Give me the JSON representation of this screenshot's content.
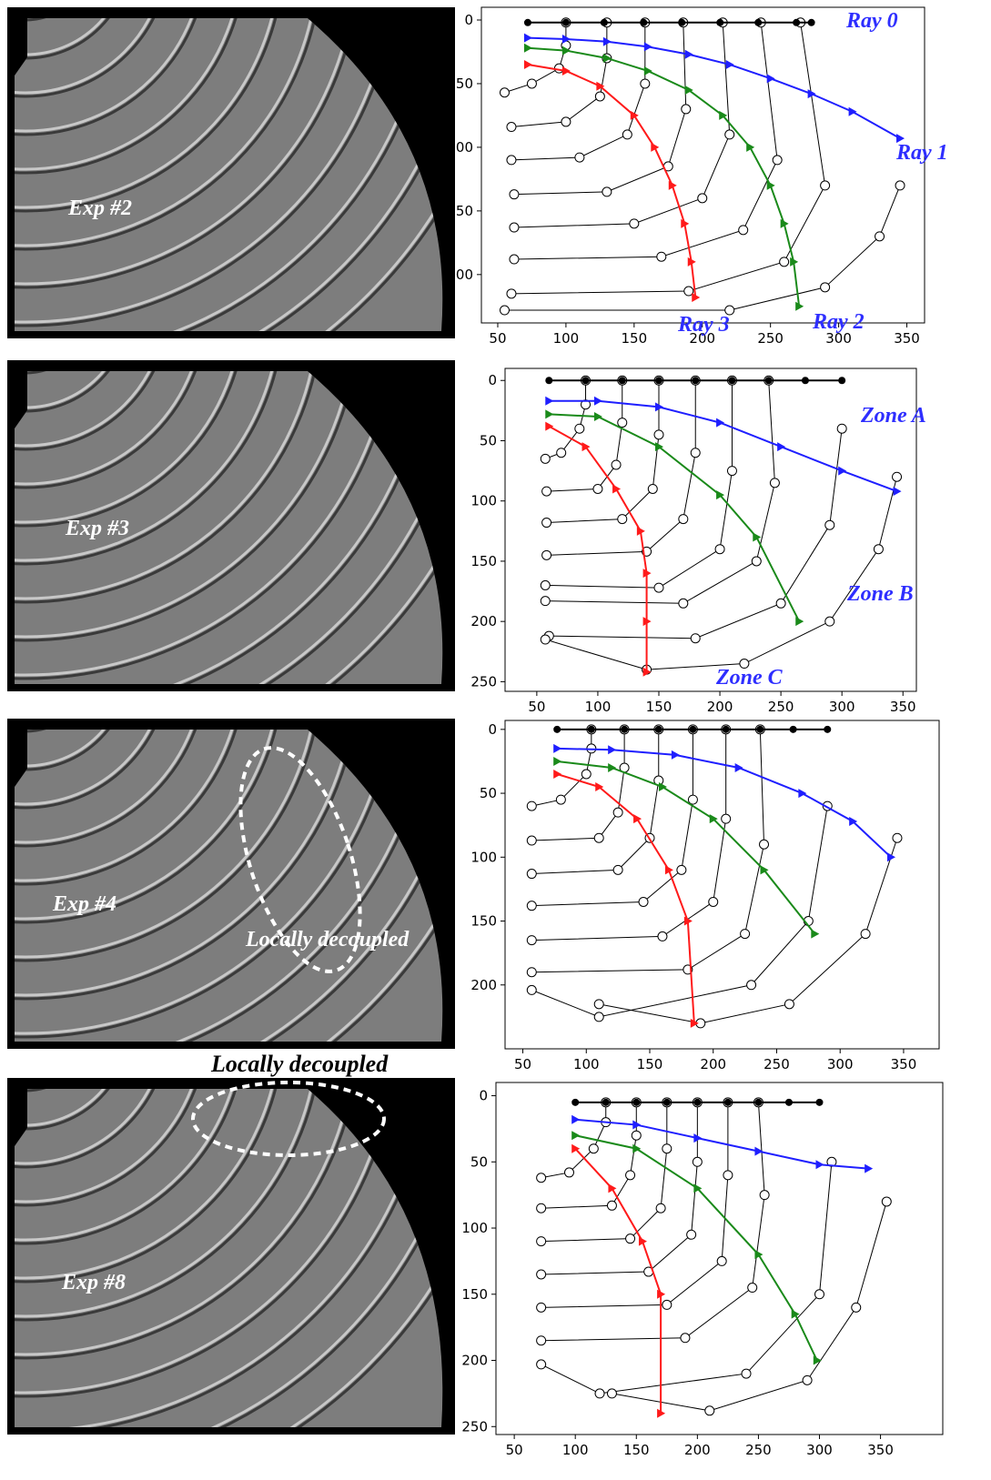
{
  "heading": "Locally decoupled",
  "images": [
    {
      "label": "Exp #2"
    },
    {
      "label": "Exp #3"
    },
    {
      "label": "Exp #4",
      "annotation": "Locally decoupled"
    },
    {
      "label": "Exp #8"
    }
  ],
  "chart_data": [
    {
      "type": "scatter",
      "xlim": [
        38,
        363
      ],
      "ylim": [
        -10,
        238
      ],
      "xticks": [
        50,
        100,
        150,
        200,
        250,
        300,
        350
      ],
      "yticks": [
        0,
        50,
        100,
        150,
        200
      ],
      "y_inverted": true,
      "annotations": [
        "Ray 0",
        "Ray 1",
        "Ray 2",
        "Ray 3"
      ],
      "annotation_color": "#2e2eff",
      "series": [
        {
          "color": "#000000",
          "marker": "circle",
          "x": [
            55,
            75,
            95,
            100,
            100
          ],
          "values": [
            57,
            50,
            38,
            20,
            2
          ]
        },
        {
          "color": "#000000",
          "marker": "circle",
          "x": [
            60,
            100,
            125,
            130,
            130
          ],
          "values": [
            84,
            80,
            60,
            30,
            2
          ]
        },
        {
          "color": "#000000",
          "marker": "circle",
          "x": [
            60,
            110,
            145,
            158,
            158
          ],
          "values": [
            110,
            108,
            90,
            50,
            2
          ]
        },
        {
          "color": "#000000",
          "marker": "circle",
          "x": [
            62,
            130,
            175,
            188,
            186
          ],
          "values": [
            137,
            135,
            115,
            70,
            2
          ]
        },
        {
          "color": "#000000",
          "marker": "circle",
          "x": [
            62,
            150,
            200,
            220,
            215
          ],
          "values": [
            163,
            160,
            140,
            90,
            2
          ]
        },
        {
          "color": "#000000",
          "marker": "circle",
          "x": [
            62,
            170,
            230,
            255,
            243
          ],
          "values": [
            188,
            186,
            165,
            110,
            2
          ]
        },
        {
          "color": "#000000",
          "marker": "circle",
          "x": [
            60,
            190,
            260,
            290,
            272
          ],
          "values": [
            215,
            213,
            190,
            130,
            2
          ]
        },
        {
          "color": "#000000",
          "marker": "circle",
          "x": [
            55,
            220,
            290,
            330,
            345
          ],
          "values": [
            228,
            228,
            210,
            170,
            130
          ]
        },
        {
          "color": "#000000",
          "marker": "dot",
          "x": [
            72,
            100,
            128,
            157,
            185,
            213,
            241,
            269,
            280
          ],
          "values": [
            2,
            2,
            2,
            2,
            2,
            2,
            2,
            2,
            2
          ]
        },
        {
          "color": "#1f1fff",
          "marker": "triangle",
          "x": [
            72,
            100,
            130,
            160,
            190,
            220,
            250,
            280,
            310,
            345
          ],
          "values": [
            14,
            15,
            17,
            21,
            27,
            35,
            46,
            58,
            72,
            93
          ]
        },
        {
          "color": "#1a8a1a",
          "marker": "triangle",
          "x": [
            72,
            100,
            130,
            160,
            190,
            215,
            235,
            250,
            260,
            267,
            271
          ],
          "values": [
            22,
            24,
            30,
            40,
            55,
            75,
            100,
            130,
            160,
            190,
            225
          ]
        },
        {
          "color": "#ff1a1a",
          "marker": "triangle",
          "x": [
            72,
            100,
            125,
            150,
            165,
            178,
            187,
            192,
            195
          ],
          "values": [
            35,
            40,
            52,
            75,
            100,
            130,
            160,
            190,
            218
          ]
        }
      ]
    },
    {
      "type": "scatter",
      "xlim": [
        24,
        361
      ],
      "ylim": [
        -10,
        258
      ],
      "xticks": [
        50,
        100,
        150,
        200,
        250,
        300,
        350
      ],
      "yticks": [
        0,
        50,
        100,
        150,
        200,
        250
      ],
      "y_inverted": true,
      "annotations": [
        "Zone A",
        "Zone B",
        "Zone C"
      ],
      "annotation_color": "#2e2eff",
      "series": [
        {
          "color": "#000000",
          "marker": "circle",
          "x": [
            57,
            70,
            85,
            90,
            90
          ],
          "values": [
            65,
            60,
            40,
            20,
            0
          ]
        },
        {
          "color": "#000000",
          "marker": "circle",
          "x": [
            58,
            100,
            115,
            120,
            120
          ],
          "values": [
            92,
            90,
            70,
            35,
            0
          ]
        },
        {
          "color": "#000000",
          "marker": "circle",
          "x": [
            58,
            120,
            145,
            150,
            150
          ],
          "values": [
            118,
            115,
            90,
            45,
            0
          ]
        },
        {
          "color": "#000000",
          "marker": "circle",
          "x": [
            58,
            140,
            170,
            180,
            180
          ],
          "values": [
            145,
            142,
            115,
            60,
            0
          ]
        },
        {
          "color": "#000000",
          "marker": "circle",
          "x": [
            57,
            150,
            200,
            210,
            210
          ],
          "values": [
            170,
            172,
            140,
            75,
            0
          ]
        },
        {
          "color": "#000000",
          "marker": "circle",
          "x": [
            57,
            170,
            230,
            245,
            240
          ],
          "values": [
            183,
            185,
            150,
            85,
            0
          ]
        },
        {
          "color": "#000000",
          "marker": "circle",
          "x": [
            60,
            180,
            250,
            290,
            300
          ],
          "values": [
            212,
            214,
            185,
            120,
            40
          ]
        },
        {
          "color": "#000000",
          "marker": "circle",
          "x": [
            57,
            140,
            220,
            290,
            330,
            345
          ],
          "values": [
            215,
            240,
            235,
            200,
            140,
            80
          ]
        },
        {
          "color": "#000000",
          "marker": "dot",
          "x": [
            60,
            90,
            120,
            150,
            180,
            210,
            240,
            270,
            300
          ],
          "values": [
            0,
            0,
            0,
            0,
            0,
            0,
            0,
            0,
            0
          ]
        },
        {
          "color": "#1f1fff",
          "marker": "triangle",
          "x": [
            60,
            100,
            150,
            200,
            250,
            300,
            345
          ],
          "values": [
            17,
            17,
            22,
            35,
            55,
            75,
            92
          ]
        },
        {
          "color": "#1a8a1a",
          "marker": "triangle",
          "x": [
            60,
            100,
            150,
            200,
            230,
            265
          ],
          "values": [
            28,
            30,
            55,
            95,
            130,
            200
          ]
        },
        {
          "color": "#ff1a1a",
          "marker": "triangle",
          "x": [
            60,
            90,
            115,
            135,
            140,
            140,
            140
          ],
          "values": [
            38,
            55,
            90,
            125,
            160,
            200,
            242
          ]
        }
      ]
    },
    {
      "type": "scatter",
      "xlim": [
        36,
        378
      ],
      "ylim": [
        -7,
        250
      ],
      "xticks": [
        50,
        100,
        150,
        200,
        250,
        300,
        350
      ],
      "yticks": [
        0,
        50,
        100,
        150,
        200
      ],
      "y_inverted": true,
      "series": [
        {
          "color": "#000000",
          "marker": "circle",
          "x": [
            57,
            80,
            100,
            104,
            104
          ],
          "values": [
            60,
            55,
            35,
            15,
            0
          ]
        },
        {
          "color": "#000000",
          "marker": "circle",
          "x": [
            57,
            110,
            125,
            130,
            130
          ],
          "values": [
            87,
            85,
            65,
            30,
            0
          ]
        },
        {
          "color": "#000000",
          "marker": "circle",
          "x": [
            57,
            125,
            150,
            157,
            157
          ],
          "values": [
            113,
            110,
            85,
            40,
            0
          ]
        },
        {
          "color": "#000000",
          "marker": "circle",
          "x": [
            57,
            145,
            175,
            184,
            184
          ],
          "values": [
            138,
            135,
            110,
            55,
            0
          ]
        },
        {
          "color": "#000000",
          "marker": "circle",
          "x": [
            57,
            160,
            200,
            210,
            210
          ],
          "values": [
            165,
            162,
            135,
            70,
            0
          ]
        },
        {
          "color": "#000000",
          "marker": "circle",
          "x": [
            57,
            180,
            225,
            240,
            237
          ],
          "values": [
            190,
            188,
            160,
            90,
            0
          ]
        },
        {
          "color": "#000000",
          "marker": "circle",
          "x": [
            57,
            110,
            230,
            275,
            290
          ],
          "values": [
            204,
            225,
            200,
            150,
            60
          ]
        },
        {
          "color": "#000000",
          "marker": "circle",
          "x": [
            110,
            190,
            260,
            320,
            345
          ],
          "values": [
            215,
            230,
            215,
            160,
            85
          ]
        },
        {
          "color": "#000000",
          "marker": "dot",
          "x": [
            77,
            104,
            130,
            157,
            184,
            210,
            237,
            263,
            290
          ],
          "values": [
            0,
            0,
            0,
            0,
            0,
            0,
            0,
            0,
            0
          ]
        },
        {
          "color": "#1f1fff",
          "marker": "triangle",
          "x": [
            77,
            120,
            170,
            220,
            270,
            310,
            340
          ],
          "values": [
            15,
            16,
            20,
            30,
            50,
            72,
            100
          ]
        },
        {
          "color": "#1a8a1a",
          "marker": "triangle",
          "x": [
            77,
            120,
            160,
            200,
            240,
            280
          ],
          "values": [
            25,
            30,
            45,
            70,
            110,
            160
          ]
        },
        {
          "color": "#ff1a1a",
          "marker": "triangle",
          "x": [
            77,
            110,
            140,
            165,
            180,
            185
          ],
          "values": [
            35,
            45,
            70,
            110,
            150,
            230
          ]
        }
      ]
    },
    {
      "type": "scatter",
      "xlim": [
        35,
        401
      ],
      "ylim": [
        -10,
        256
      ],
      "xticks": [
        50,
        100,
        150,
        200,
        250,
        300,
        350
      ],
      "yticks": [
        0,
        50,
        100,
        150,
        200,
        250
      ],
      "y_inverted": true,
      "series": [
        {
          "color": "#000000",
          "marker": "circle",
          "x": [
            72,
            95,
            115,
            125,
            125
          ],
          "values": [
            62,
            58,
            40,
            20,
            5
          ]
        },
        {
          "color": "#000000",
          "marker": "circle",
          "x": [
            72,
            130,
            145,
            150,
            150
          ],
          "values": [
            85,
            83,
            60,
            30,
            5
          ]
        },
        {
          "color": "#000000",
          "marker": "circle",
          "x": [
            72,
            145,
            170,
            175,
            175
          ],
          "values": [
            110,
            108,
            85,
            40,
            5
          ]
        },
        {
          "color": "#000000",
          "marker": "circle",
          "x": [
            72,
            160,
            195,
            200,
            200
          ],
          "values": [
            135,
            133,
            105,
            50,
            5
          ]
        },
        {
          "color": "#000000",
          "marker": "circle",
          "x": [
            72,
            175,
            220,
            225,
            225
          ],
          "values": [
            160,
            158,
            125,
            60,
            5
          ]
        },
        {
          "color": "#000000",
          "marker": "circle",
          "x": [
            72,
            190,
            245,
            255,
            250
          ],
          "values": [
            185,
            183,
            145,
            75,
            5
          ]
        },
        {
          "color": "#000000",
          "marker": "circle",
          "x": [
            72,
            120,
            240,
            300,
            310
          ],
          "values": [
            203,
            225,
            210,
            150,
            50
          ]
        },
        {
          "color": "#000000",
          "marker": "circle",
          "x": [
            130,
            210,
            290,
            330,
            355
          ],
          "values": [
            225,
            238,
            215,
            160,
            80
          ]
        },
        {
          "color": "#000000",
          "marker": "dot",
          "x": [
            100,
            125,
            150,
            175,
            200,
            225,
            250,
            275,
            300
          ],
          "values": [
            5,
            5,
            5,
            5,
            5,
            5,
            5,
            5,
            5
          ]
        },
        {
          "color": "#1f1fff",
          "marker": "triangle",
          "x": [
            100,
            150,
            200,
            250,
            300,
            340
          ],
          "values": [
            18,
            22,
            32,
            42,
            52,
            55
          ]
        },
        {
          "color": "#1a8a1a",
          "marker": "triangle",
          "x": [
            100,
            150,
            200,
            250,
            280,
            298
          ],
          "values": [
            30,
            40,
            70,
            120,
            165,
            200
          ]
        },
        {
          "color": "#ff1a1a",
          "marker": "triangle",
          "x": [
            100,
            130,
            155,
            170,
            170
          ],
          "values": [
            40,
            70,
            110,
            150,
            240
          ]
        }
      ]
    }
  ]
}
